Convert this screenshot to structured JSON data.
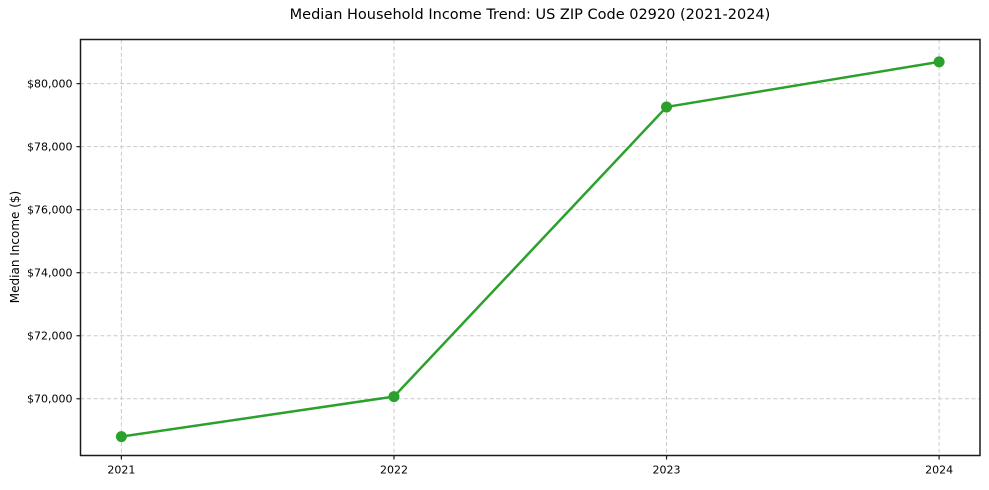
{
  "chart_data": {
    "type": "line",
    "title": "Median Household Income Trend: US ZIP Code 02920 (2021-2024)",
    "xlabel": "",
    "ylabel": "Median Income ($)",
    "x": [
      2021,
      2022,
      2023,
      2024
    ],
    "xtick_labels": [
      "2021",
      "2022",
      "2023",
      "2024"
    ],
    "values": [
      68800,
      70070,
      79260,
      80690
    ],
    "yticks": [
      70000,
      72000,
      74000,
      76000,
      78000,
      80000
    ],
    "ytick_labels": [
      "$70,000",
      "$72,000",
      "$74,000",
      "$76,000",
      "$78,000",
      "$80,000"
    ],
    "xlim": [
      2020.85,
      2024.15
    ],
    "ylim": [
      68200,
      81400
    ],
    "grid": true,
    "grid_style": "dashed",
    "legend_position": "none",
    "line_color": "#2ca02c",
    "marker": "circle",
    "grid_color": "#c9c9c9",
    "spine_color": "#1a1a1a",
    "background_color": "#ffffff"
  }
}
